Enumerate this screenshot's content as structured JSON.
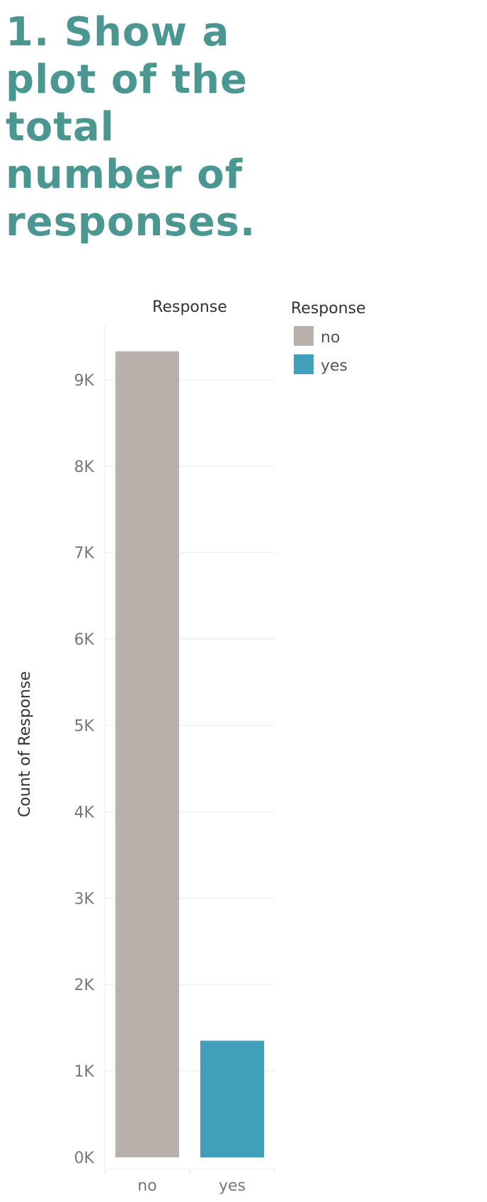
{
  "heading": "1. Show a plot of the total number of responses.",
  "chart_data": {
    "type": "bar",
    "header": "Response",
    "xlabel": "",
    "ylabel": "Count of Response",
    "categories": [
      "no",
      "yes"
    ],
    "values": [
      9330,
      1350
    ],
    "colors": [
      "#bab0ab",
      "#429fbb"
    ],
    "ylim": [
      0,
      9500
    ],
    "yticks": [
      0,
      1000,
      2000,
      3000,
      4000,
      5000,
      6000,
      7000,
      8000,
      9000
    ],
    "ytick_labels": [
      "0K",
      "1K",
      "2K",
      "3K",
      "4K",
      "5K",
      "6K",
      "7K",
      "8K",
      "9K"
    ],
    "grid": true,
    "legend": {
      "title": "Response",
      "position": "top-right",
      "entries": [
        {
          "label": "no",
          "color": "#bab0ab"
        },
        {
          "label": "yes",
          "color": "#429fbb"
        }
      ]
    }
  }
}
